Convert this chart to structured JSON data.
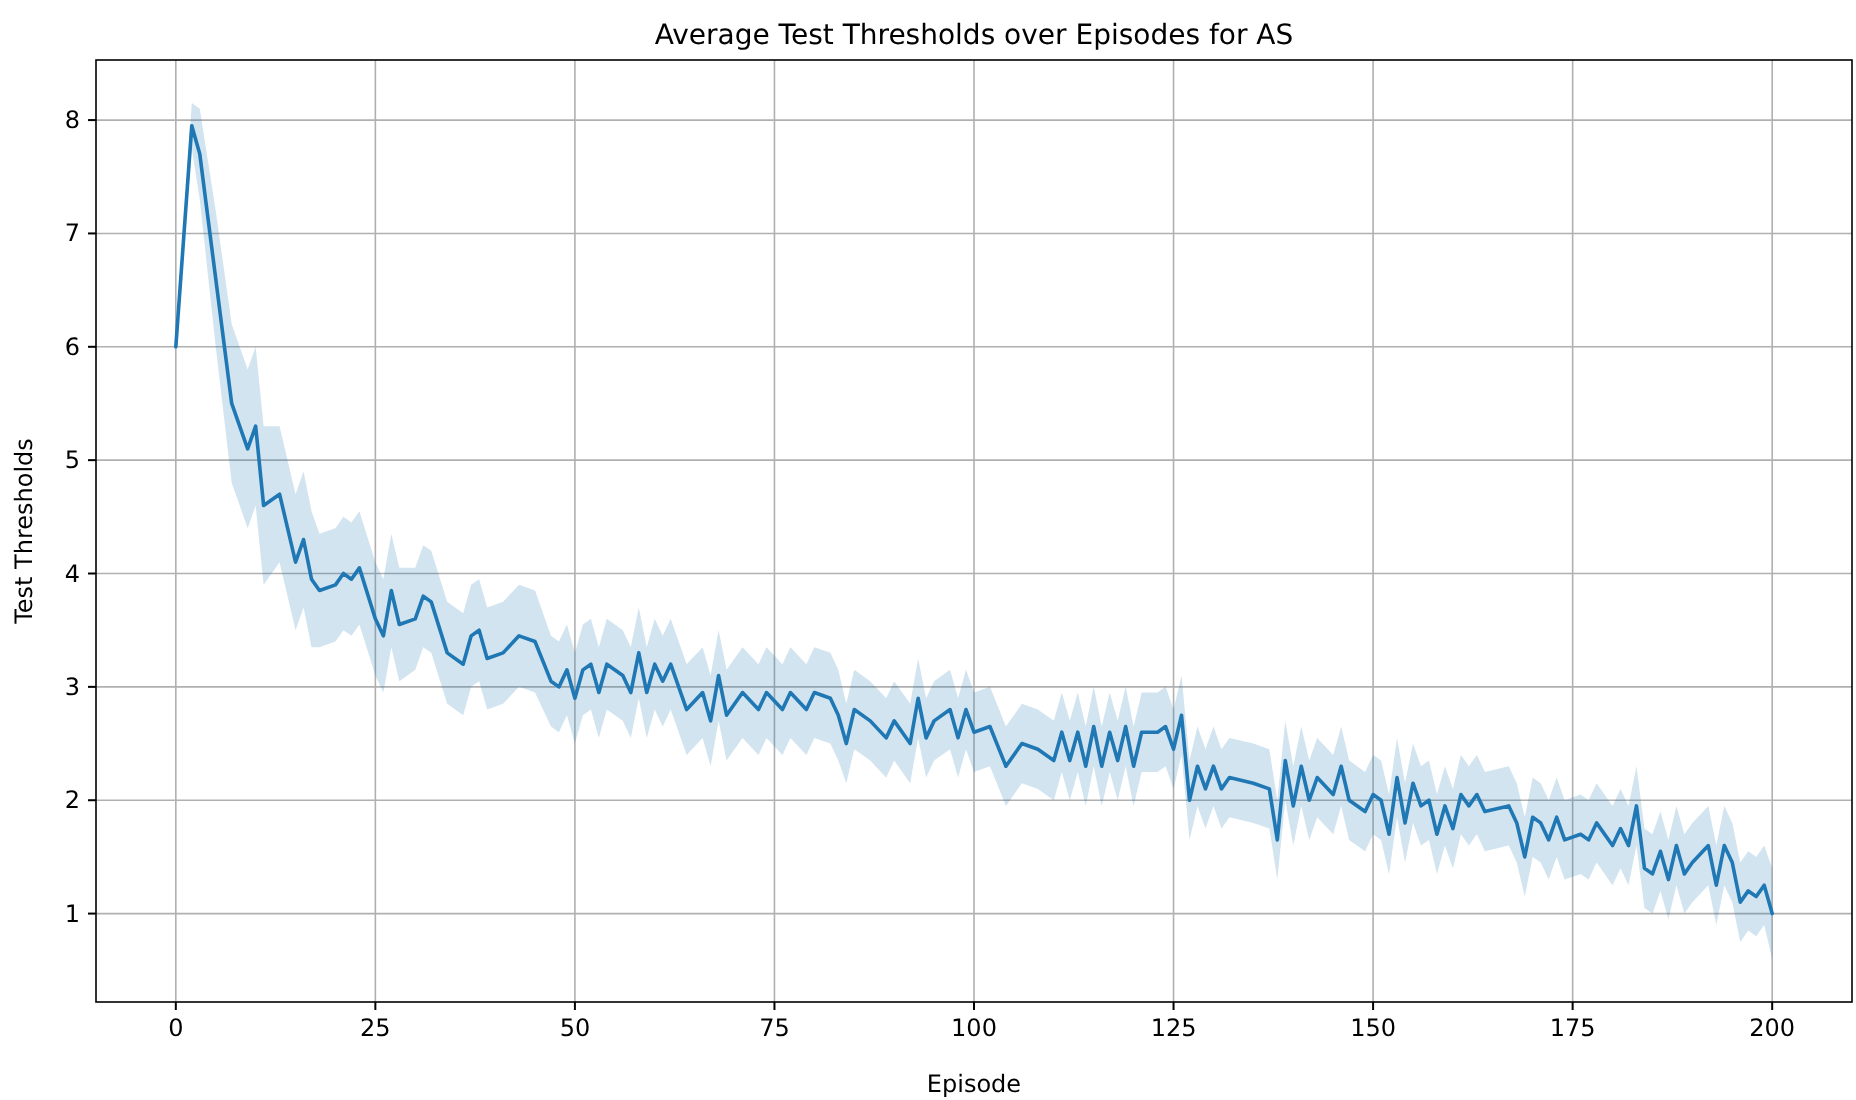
{
  "chart_data": {
    "type": "line",
    "title": "Average Test Thresholds over Episodes for AS",
    "xlabel": "Episode",
    "ylabel": "Test Thresholds",
    "xlim": [
      -10,
      210
    ],
    "xticks": [
      0,
      25,
      50,
      75,
      100,
      125,
      150,
      175,
      200
    ],
    "ylim": [
      0.22,
      8.53
    ],
    "yticks": [
      1,
      2,
      3,
      4,
      5,
      6,
      7,
      8
    ],
    "grid": true,
    "marker": "none",
    "line_style": "solid",
    "series": [
      {
        "color": "#1f77b4",
        "x": [
          0,
          2,
          3,
          5,
          7,
          9,
          10,
          11,
          13,
          15,
          16,
          17,
          18,
          20,
          21,
          22,
          23,
          25,
          26,
          27,
          28,
          30,
          31,
          32,
          34,
          36,
          37,
          38,
          39,
          41,
          43,
          45,
          47,
          48,
          49,
          50,
          51,
          52,
          53,
          54,
          56,
          57,
          58,
          59,
          60,
          61,
          62,
          64,
          66,
          67,
          68,
          69,
          71,
          73,
          74,
          76,
          77,
          79,
          80,
          82,
          83,
          84,
          85,
          87,
          89,
          90,
          92,
          93,
          94,
          95,
          97,
          98,
          99,
          100,
          102,
          104,
          106,
          108,
          110,
          111,
          112,
          113,
          114,
          115,
          116,
          117,
          118,
          119,
          120,
          121,
          123,
          124,
          125,
          126,
          127,
          128,
          129,
          130,
          131,
          132,
          135,
          137,
          138,
          139,
          140,
          141,
          142,
          143,
          145,
          146,
          147,
          149,
          150,
          151,
          152,
          153,
          154,
          155,
          156,
          157,
          158,
          159,
          160,
          161,
          162,
          163,
          164,
          167,
          168,
          169,
          170,
          171,
          172,
          173,
          174,
          176,
          177,
          178,
          180,
          181,
          182,
          183,
          184,
          185,
          186,
          187,
          188,
          189,
          190,
          192,
          193,
          194,
          195,
          196,
          197,
          198,
          199,
          200
        ],
        "values": [
          6.0,
          7.95,
          7.7,
          6.6,
          5.5,
          5.1,
          5.3,
          4.6,
          4.7,
          4.1,
          4.3,
          3.95,
          3.85,
          3.9,
          4.0,
          3.95,
          4.05,
          3.6,
          3.45,
          3.85,
          3.55,
          3.6,
          3.8,
          3.75,
          3.3,
          3.2,
          3.45,
          3.5,
          3.25,
          3.3,
          3.45,
          3.4,
          3.05,
          3.0,
          3.15,
          2.9,
          3.15,
          3.2,
          2.95,
          3.2,
          3.1,
          2.95,
          3.3,
          2.95,
          3.2,
          3.05,
          3.2,
          2.8,
          2.95,
          2.7,
          3.1,
          2.75,
          2.95,
          2.8,
          2.95,
          2.8,
          2.95,
          2.8,
          2.95,
          2.9,
          2.75,
          2.5,
          2.8,
          2.7,
          2.55,
          2.7,
          2.5,
          2.9,
          2.55,
          2.7,
          2.8,
          2.55,
          2.8,
          2.6,
          2.65,
          2.3,
          2.5,
          2.45,
          2.35,
          2.6,
          2.35,
          2.6,
          2.3,
          2.65,
          2.3,
          2.6,
          2.35,
          2.65,
          2.3,
          2.6,
          2.6,
          2.65,
          2.45,
          2.75,
          2.0,
          2.3,
          2.1,
          2.3,
          2.1,
          2.2,
          2.15,
          2.1,
          1.65,
          2.35,
          1.95,
          2.3,
          2.0,
          2.2,
          2.05,
          2.3,
          2.0,
          1.9,
          2.05,
          2.0,
          1.7,
          2.2,
          1.8,
          2.15,
          1.95,
          2.0,
          1.7,
          1.95,
          1.75,
          2.05,
          1.95,
          2.05,
          1.9,
          1.95,
          1.8,
          1.5,
          1.85,
          1.8,
          1.65,
          1.85,
          1.65,
          1.7,
          1.65,
          1.8,
          1.6,
          1.75,
          1.6,
          1.95,
          1.4,
          1.35,
          1.55,
          1.3,
          1.6,
          1.35,
          1.45,
          1.6,
          1.25,
          1.6,
          1.45,
          1.1,
          1.2,
          1.15,
          1.25,
          1.0
        ],
        "lower": [
          6.0,
          7.75,
          7.3,
          6.0,
          4.8,
          4.4,
          4.6,
          3.9,
          4.1,
          3.5,
          3.7,
          3.35,
          3.35,
          3.4,
          3.5,
          3.45,
          3.55,
          3.1,
          2.95,
          3.35,
          3.05,
          3.15,
          3.35,
          3.3,
          2.85,
          2.75,
          3.0,
          3.05,
          2.8,
          2.85,
          3.0,
          2.95,
          2.65,
          2.6,
          2.75,
          2.5,
          2.75,
          2.8,
          2.55,
          2.8,
          2.7,
          2.55,
          2.9,
          2.55,
          2.8,
          2.65,
          2.8,
          2.4,
          2.55,
          2.3,
          2.7,
          2.35,
          2.55,
          2.4,
          2.55,
          2.4,
          2.55,
          2.4,
          2.55,
          2.5,
          2.35,
          2.15,
          2.45,
          2.35,
          2.2,
          2.35,
          2.15,
          2.55,
          2.2,
          2.35,
          2.45,
          2.2,
          2.45,
          2.25,
          2.3,
          1.95,
          2.15,
          2.1,
          2.0,
          2.25,
          2.0,
          2.25,
          1.95,
          2.3,
          1.95,
          2.25,
          2.0,
          2.3,
          1.95,
          2.25,
          2.25,
          2.3,
          2.1,
          2.4,
          1.65,
          1.95,
          1.75,
          1.95,
          1.75,
          1.85,
          1.8,
          1.75,
          1.3,
          2.0,
          1.6,
          1.95,
          1.65,
          1.85,
          1.7,
          1.95,
          1.65,
          1.55,
          1.7,
          1.65,
          1.35,
          1.85,
          1.45,
          1.8,
          1.6,
          1.65,
          1.35,
          1.6,
          1.4,
          1.7,
          1.6,
          1.7,
          1.55,
          1.6,
          1.45,
          1.15,
          1.5,
          1.45,
          1.3,
          1.5,
          1.3,
          1.35,
          1.3,
          1.45,
          1.25,
          1.4,
          1.25,
          1.6,
          1.05,
          1.0,
          1.2,
          0.95,
          1.25,
          1.0,
          1.1,
          1.25,
          0.9,
          1.25,
          1.1,
          0.75,
          0.85,
          0.8,
          0.9,
          0.6
        ],
        "upper": [
          6.0,
          8.15,
          8.1,
          7.2,
          6.2,
          5.8,
          6.0,
          5.3,
          5.3,
          4.7,
          4.9,
          4.55,
          4.35,
          4.4,
          4.5,
          4.45,
          4.55,
          4.1,
          3.95,
          4.35,
          4.05,
          4.05,
          4.25,
          4.2,
          3.75,
          3.65,
          3.9,
          3.95,
          3.7,
          3.75,
          3.9,
          3.85,
          3.45,
          3.4,
          3.55,
          3.3,
          3.55,
          3.6,
          3.35,
          3.6,
          3.5,
          3.35,
          3.7,
          3.35,
          3.6,
          3.45,
          3.6,
          3.2,
          3.35,
          3.1,
          3.5,
          3.15,
          3.35,
          3.2,
          3.35,
          3.2,
          3.35,
          3.2,
          3.35,
          3.3,
          3.15,
          2.85,
          3.15,
          3.05,
          2.9,
          3.05,
          2.85,
          3.25,
          2.9,
          3.05,
          3.15,
          2.9,
          3.15,
          2.95,
          3.0,
          2.65,
          2.85,
          2.8,
          2.7,
          2.95,
          2.7,
          2.95,
          2.65,
          3.0,
          2.65,
          2.95,
          2.7,
          3.0,
          2.65,
          2.95,
          2.95,
          3.0,
          2.8,
          3.1,
          2.35,
          2.65,
          2.45,
          2.65,
          2.45,
          2.55,
          2.5,
          2.45,
          2.0,
          2.7,
          2.3,
          2.65,
          2.35,
          2.55,
          2.4,
          2.65,
          2.35,
          2.25,
          2.4,
          2.35,
          2.05,
          2.55,
          2.15,
          2.5,
          2.3,
          2.35,
          2.05,
          2.3,
          2.1,
          2.4,
          2.3,
          2.4,
          2.25,
          2.3,
          2.15,
          1.85,
          2.2,
          2.15,
          2.0,
          2.2,
          2.0,
          2.05,
          2.0,
          2.15,
          1.95,
          2.1,
          1.95,
          2.3,
          1.75,
          1.7,
          1.9,
          1.65,
          1.95,
          1.7,
          1.8,
          1.95,
          1.6,
          1.95,
          1.8,
          1.45,
          1.55,
          1.5,
          1.6,
          1.4
        ]
      }
    ]
  }
}
